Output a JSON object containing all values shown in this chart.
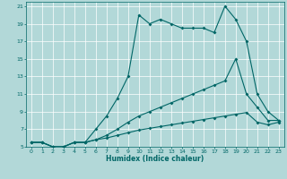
{
  "xlabel": "Humidex (Indice chaleur)",
  "bg_color": "#b2d8d8",
  "grid_color": "#ffffff",
  "line_color": "#006666",
  "xlim": [
    -0.5,
    23.5
  ],
  "ylim": [
    5,
    21.5
  ],
  "xticks": [
    0,
    1,
    2,
    3,
    4,
    5,
    6,
    7,
    8,
    9,
    10,
    11,
    12,
    13,
    14,
    15,
    16,
    17,
    18,
    19,
    20,
    21,
    22,
    23
  ],
  "yticks": [
    5,
    7,
    9,
    11,
    13,
    15,
    17,
    19,
    21
  ],
  "line1_x": [
    0,
    1,
    2,
    3,
    4,
    5,
    6,
    7,
    8,
    9,
    10,
    11,
    12,
    13,
    14,
    15,
    16,
    17,
    18,
    19,
    20,
    21,
    22,
    23
  ],
  "line1_y": [
    5.5,
    5.5,
    5,
    5,
    5.5,
    5.5,
    7,
    8.5,
    10.5,
    13,
    20,
    19,
    19.5,
    19,
    18.5,
    18.5,
    18.5,
    18,
    21,
    19.5,
    17,
    11,
    9,
    8
  ],
  "line2_x": [
    0,
    1,
    2,
    3,
    4,
    5,
    6,
    7,
    8,
    9,
    10,
    11,
    12,
    13,
    14,
    15,
    16,
    17,
    18,
    19,
    20,
    21,
    22,
    23
  ],
  "line2_y": [
    5.5,
    5.5,
    5,
    5,
    5.5,
    5.5,
    5.8,
    6.3,
    7.0,
    7.8,
    8.5,
    9.0,
    9.5,
    10.0,
    10.5,
    11.0,
    11.5,
    12.0,
    12.5,
    15,
    11,
    9.5,
    8,
    8
  ],
  "line3_x": [
    0,
    1,
    2,
    3,
    4,
    5,
    6,
    7,
    8,
    9,
    10,
    11,
    12,
    13,
    14,
    15,
    16,
    17,
    18,
    19,
    20,
    21,
    22,
    23
  ],
  "line3_y": [
    5.5,
    5.5,
    5,
    5,
    5.5,
    5.5,
    5.8,
    6.0,
    6.3,
    6.6,
    6.9,
    7.1,
    7.3,
    7.5,
    7.7,
    7.9,
    8.1,
    8.3,
    8.5,
    8.7,
    8.9,
    7.8,
    7.5,
    7.8
  ]
}
